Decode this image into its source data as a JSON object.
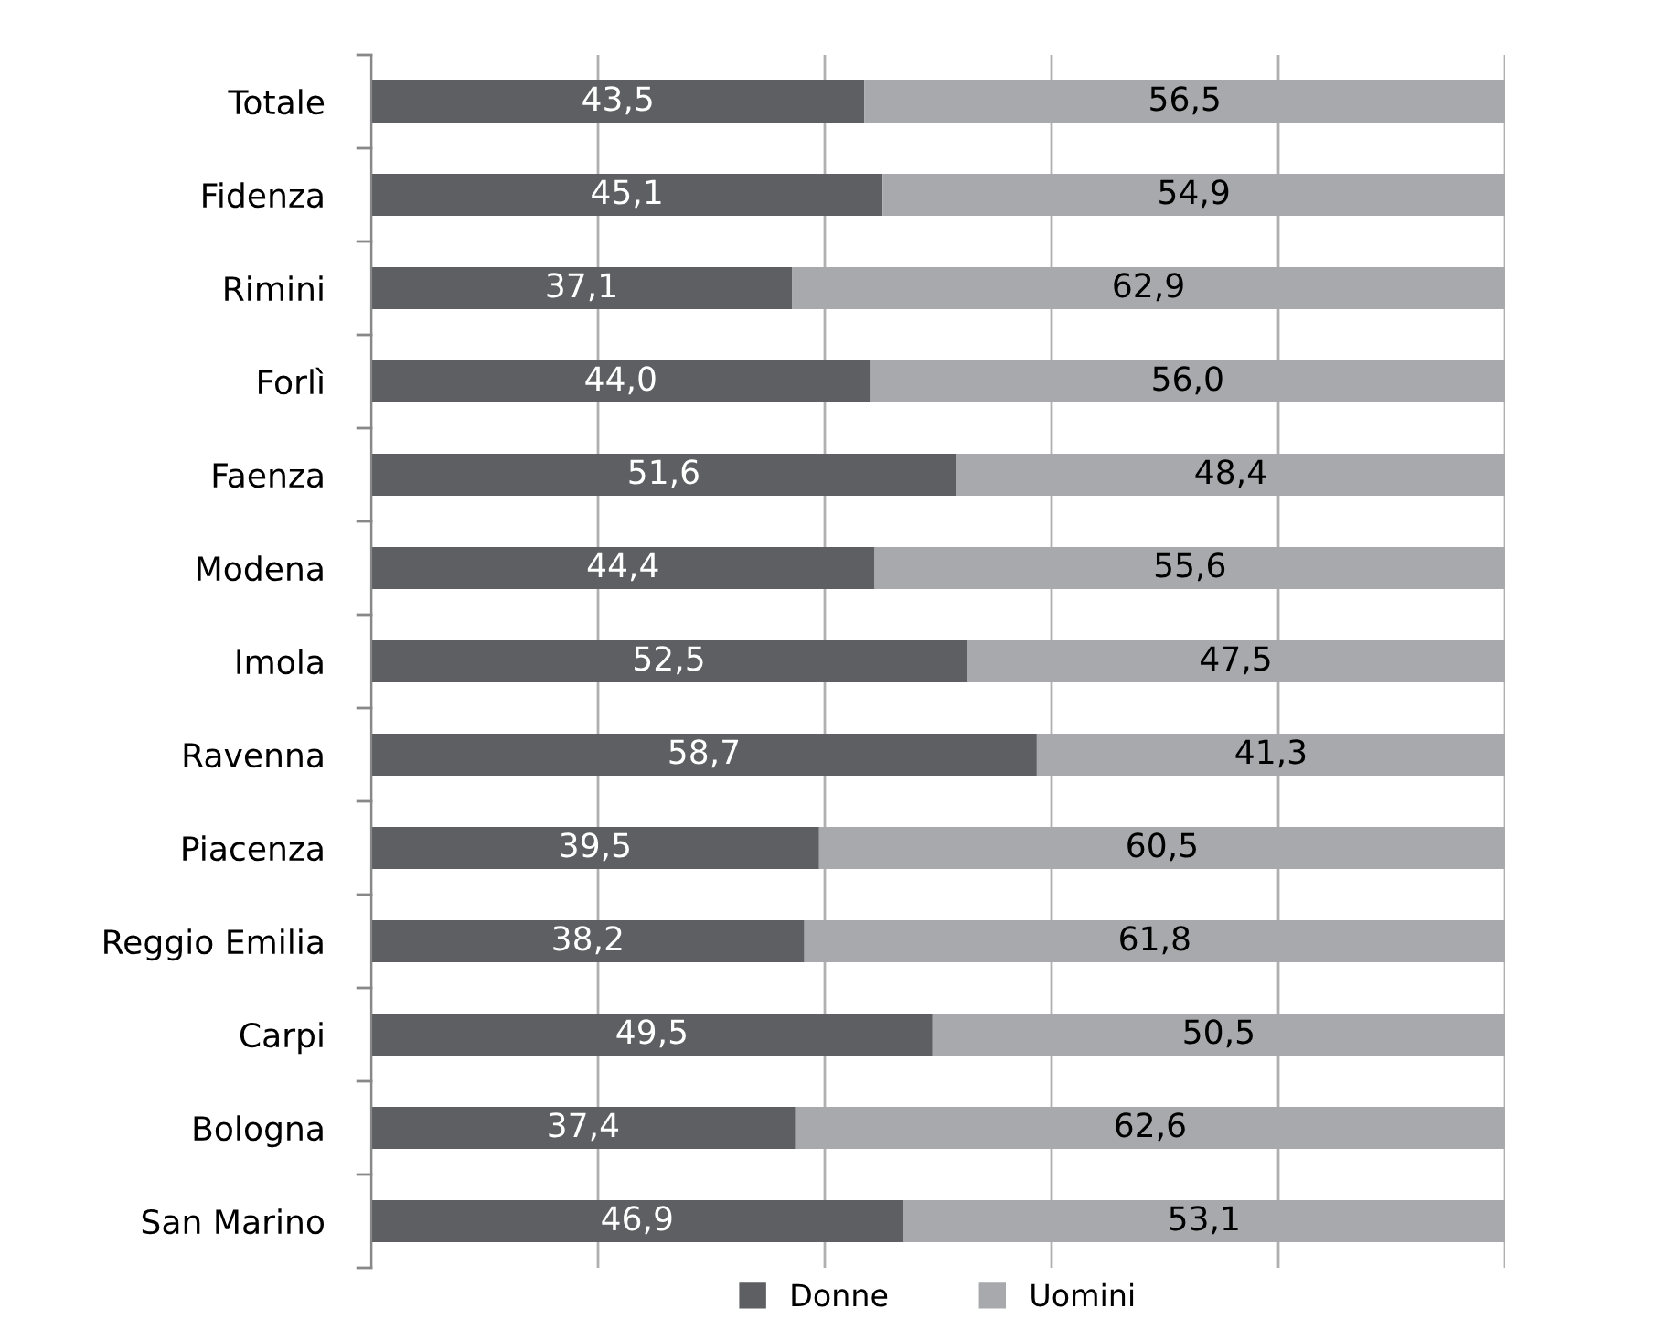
{
  "chart_data": {
    "type": "bar",
    "orientation": "horizontal",
    "stacked": true,
    "categories": [
      "Totale",
      "Fidenza",
      "Rimini",
      "Forlì",
      "Faenza",
      "Modena",
      "Imola",
      "Ravenna",
      "Piacenza",
      "Reggio Emilia",
      "Carpi",
      "Bologna",
      "San Marino"
    ],
    "series": [
      {
        "name": "Donne",
        "color": "#5e5f62",
        "values": [
          43.5,
          45.1,
          37.1,
          44.0,
          51.6,
          44.4,
          52.5,
          58.7,
          39.5,
          38.2,
          49.5,
          37.4,
          46.9
        ],
        "value_labels": [
          "43,5",
          "45,1",
          "37,1",
          "44,0",
          "51,6",
          "44,4",
          "52,5",
          "58,7",
          "39,5",
          "38,2",
          "49,5",
          "37,4",
          "46,9"
        ]
      },
      {
        "name": "Uomini",
        "color": "#a7a9ac",
        "values": [
          56.5,
          54.9,
          62.9,
          56.0,
          48.4,
          55.6,
          47.5,
          41.3,
          60.5,
          61.8,
          50.5,
          62.6,
          53.1
        ],
        "value_labels": [
          "56,5",
          "54,9",
          "62,9",
          "56,0",
          "48,4",
          "55,6",
          "47,5",
          "41,3",
          "60,5",
          "61,8",
          "50,5",
          "62,6",
          "53,1"
        ]
      }
    ],
    "xlim": [
      0,
      100
    ],
    "xticks": [
      {
        "value": 0,
        "label": null
      },
      {
        "value": 20,
        "label": null
      },
      {
        "value": 40,
        "label": null
      },
      {
        "value": 60,
        "label": null
      },
      {
        "value": 80,
        "label": null
      },
      {
        "value": 100,
        "label": null
      }
    ],
    "grid": "x",
    "legend": "bottom",
    "tick_labels": "y"
  }
}
